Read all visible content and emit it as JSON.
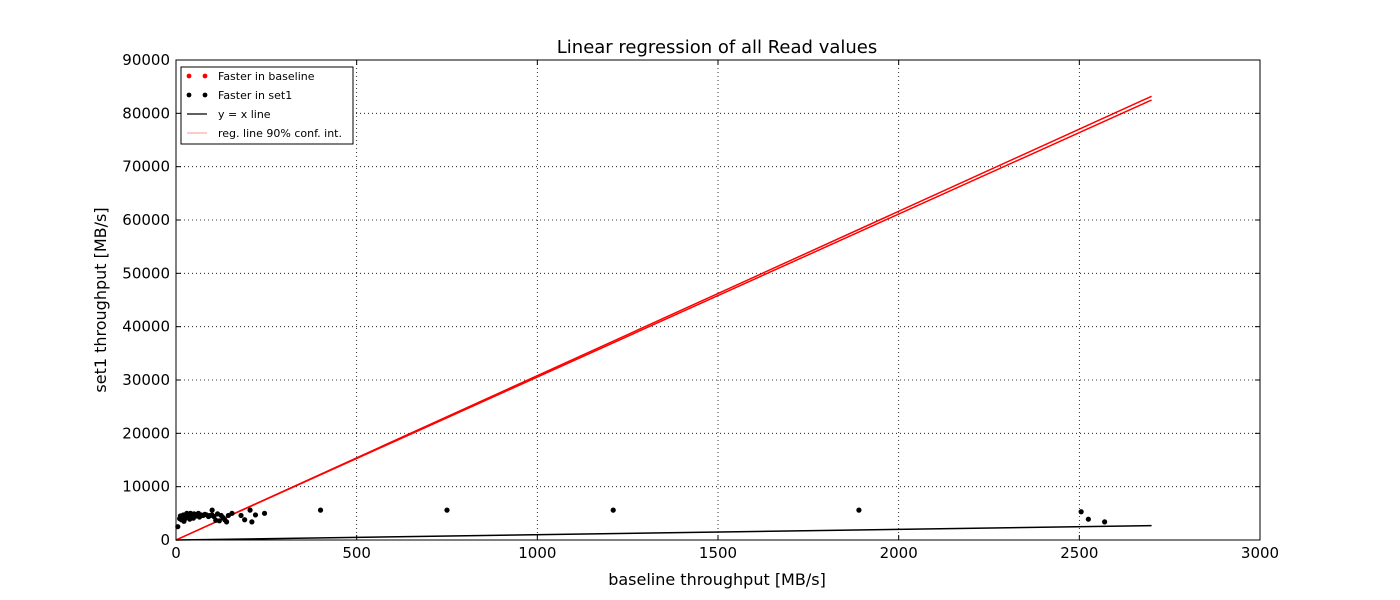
{
  "chart_data": {
    "type": "scatter",
    "title": "Linear regression of all Read values",
    "xlabel": "baseline throughput [MB/s]",
    "ylabel": "set1 throughput [MB/s]",
    "xlim": [
      0,
      3000
    ],
    "ylim": [
      0,
      90000
    ],
    "xticks": [
      0,
      500,
      1000,
      1500,
      2000,
      2500,
      3000
    ],
    "yticks": [
      0,
      10000,
      20000,
      30000,
      40000,
      50000,
      60000,
      70000,
      80000,
      90000
    ],
    "grid": true,
    "legend_position": "top-left",
    "legend": [
      {
        "label": "Faster in baseline",
        "kind": "marker",
        "color": "#ff0000"
      },
      {
        "label": "Faster in set1",
        "kind": "marker",
        "color": "#000000"
      },
      {
        "label": "y = x line",
        "kind": "line",
        "color": "#000000"
      },
      {
        "label": "reg. line 90% conf. int.",
        "kind": "line",
        "color": "#ffaaaa"
      }
    ],
    "series": [
      {
        "name": "Faster in set1",
        "color": "#000000",
        "points": [
          [
            5,
            2500
          ],
          [
            10,
            4000
          ],
          [
            12,
            4500
          ],
          [
            15,
            3800
          ],
          [
            18,
            4200
          ],
          [
            20,
            4700
          ],
          [
            22,
            3500
          ],
          [
            25,
            4000
          ],
          [
            28,
            4800
          ],
          [
            30,
            5000
          ],
          [
            32,
            4300
          ],
          [
            35,
            4600
          ],
          [
            38,
            3900
          ],
          [
            40,
            5000
          ],
          [
            42,
            4400
          ],
          [
            45,
            4800
          ],
          [
            48,
            4100
          ],
          [
            50,
            4900
          ],
          [
            55,
            4500
          ],
          [
            60,
            4700
          ],
          [
            62,
            5000
          ],
          [
            65,
            4300
          ],
          [
            70,
            4700
          ],
          [
            75,
            4600
          ],
          [
            80,
            4800
          ],
          [
            85,
            4700
          ],
          [
            90,
            4400
          ],
          [
            95,
            4600
          ],
          [
            100,
            5600
          ],
          [
            100,
            4700
          ],
          [
            105,
            4400
          ],
          [
            110,
            3700
          ],
          [
            115,
            4900
          ],
          [
            120,
            3600
          ],
          [
            125,
            4600
          ],
          [
            130,
            4200
          ],
          [
            135,
            3800
          ],
          [
            140,
            3400
          ],
          [
            145,
            4600
          ],
          [
            155,
            5000
          ],
          [
            180,
            4600
          ],
          [
            190,
            3800
          ],
          [
            205,
            5600
          ],
          [
            210,
            3400
          ],
          [
            220,
            4700
          ],
          [
            245,
            5000
          ],
          [
            400,
            5600
          ],
          [
            750,
            5600
          ],
          [
            1210,
            5600
          ],
          [
            1890,
            5600
          ],
          [
            2505,
            5300
          ],
          [
            2525,
            3900
          ],
          [
            2570,
            3400
          ]
        ]
      },
      {
        "name": "Faster in baseline",
        "color": "#ff0000",
        "points": []
      }
    ],
    "lines": [
      {
        "name": "y = x line",
        "color": "#000000",
        "from": [
          0,
          0
        ],
        "to": [
          2700,
          2700
        ]
      },
      {
        "name": "reg. line upper",
        "color": "#ff0000",
        "from": [
          0,
          0
        ],
        "to": [
          2700,
          83200
        ]
      },
      {
        "name": "reg. line lower",
        "color": "#ff0000",
        "from": [
          0,
          0
        ],
        "to": [
          2700,
          82500
        ]
      }
    ]
  }
}
